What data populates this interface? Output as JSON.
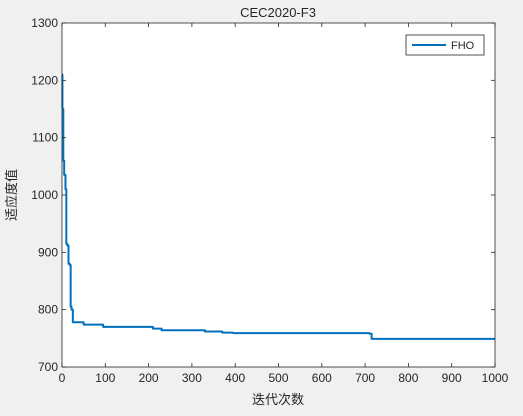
{
  "chart_data": {
    "type": "line",
    "title": "CEC2020-F3",
    "xlabel": "迭代次数",
    "ylabel": "适应度值",
    "xlim": [
      0,
      1000
    ],
    "ylim": [
      700,
      1300
    ],
    "xticks": [
      "0",
      "100",
      "200",
      "300",
      "400",
      "500",
      "600",
      "700",
      "800",
      "900",
      "1000"
    ],
    "yticks": [
      "700",
      "800",
      "900",
      "1000",
      "1100",
      "1200",
      "1300"
    ],
    "grid": false,
    "legend_position": "top-right",
    "series": [
      {
        "name": "FHO",
        "color": "#0072bd",
        "x": [
          0,
          1,
          3,
          5,
          8,
          10,
          12,
          15,
          18,
          20,
          22,
          25,
          28,
          32,
          45,
          50,
          80,
          95,
          200,
          210,
          230,
          330,
          370,
          395,
          710,
          715,
          1000
        ],
        "y": [
          1210,
          1150,
          1060,
          1035,
          1010,
          915,
          912,
          880,
          878,
          805,
          800,
          778,
          778,
          778,
          778,
          774,
          774,
          770,
          770,
          767,
          764,
          762,
          760,
          759,
          758,
          749,
          749
        ]
      }
    ]
  }
}
